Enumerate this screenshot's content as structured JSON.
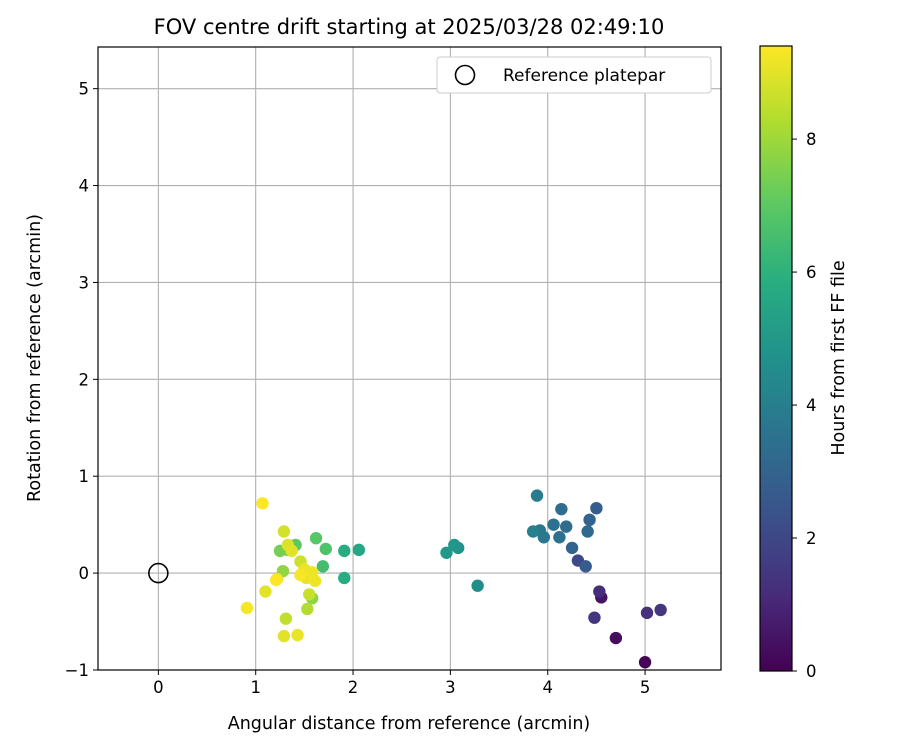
{
  "chart_data": {
    "type": "scatter",
    "title": "FOV centre drift starting at 2025/03/28 02:49:10",
    "xlabel": "Angular distance from reference (arcmin)",
    "ylabel": "Rotation from reference (arcmin)",
    "xlim": [
      -0.62,
      5.78
    ],
    "ylim": [
      -1.0,
      5.43
    ],
    "xticks": [
      "0",
      "1",
      "2",
      "3",
      "4",
      "5"
    ],
    "yticks": [
      "−1",
      "0",
      "1",
      "2",
      "3",
      "4",
      "5"
    ],
    "grid": true,
    "legend": {
      "placement": "top-right",
      "entries": [
        "Reference platepar"
      ]
    },
    "reference_point": {
      "x": 0.0,
      "y": 0.0
    },
    "colorbar": {
      "label": "Hours from first FF file",
      "colormap": "viridis",
      "range": [
        0,
        9.4
      ],
      "ticks": [
        "0",
        "2",
        "4",
        "6",
        "8"
      ]
    },
    "points": [
      {
        "x": 5.0,
        "y": -0.92,
        "c": 0.1
      },
      {
        "x": 4.7,
        "y": -0.67,
        "c": 0.3
      },
      {
        "x": 4.55,
        "y": -0.25,
        "c": 0.5
      },
      {
        "x": 4.53,
        "y": -0.19,
        "c": 1.2
      },
      {
        "x": 5.02,
        "y": -0.41,
        "c": 1.3
      },
      {
        "x": 5.16,
        "y": -0.38,
        "c": 1.5
      },
      {
        "x": 4.48,
        "y": -0.46,
        "c": 1.4
      },
      {
        "x": 4.31,
        "y": 0.13,
        "c": 2.1
      },
      {
        "x": 4.39,
        "y": 0.07,
        "c": 2.7
      },
      {
        "x": 4.25,
        "y": 0.26,
        "c": 3.0
      },
      {
        "x": 4.5,
        "y": 0.67,
        "c": 2.8
      },
      {
        "x": 4.43,
        "y": 0.55,
        "c": 3.0
      },
      {
        "x": 4.41,
        "y": 0.43,
        "c": 3.2
      },
      {
        "x": 4.19,
        "y": 0.48,
        "c": 3.3
      },
      {
        "x": 4.14,
        "y": 0.66,
        "c": 3.3
      },
      {
        "x": 4.12,
        "y": 0.37,
        "c": 3.5
      },
      {
        "x": 4.06,
        "y": 0.5,
        "c": 3.5
      },
      {
        "x": 3.96,
        "y": 0.37,
        "c": 3.7
      },
      {
        "x": 3.92,
        "y": 0.44,
        "c": 3.8
      },
      {
        "x": 3.89,
        "y": 0.8,
        "c": 3.9
      },
      {
        "x": 3.85,
        "y": 0.43,
        "c": 4.0
      },
      {
        "x": 3.28,
        "y": -0.13,
        "c": 4.6
      },
      {
        "x": 3.08,
        "y": 0.26,
        "c": 4.8
      },
      {
        "x": 3.04,
        "y": 0.29,
        "c": 4.9
      },
      {
        "x": 2.96,
        "y": 0.21,
        "c": 5.0
      },
      {
        "x": 2.06,
        "y": 0.24,
        "c": 5.6
      },
      {
        "x": 1.91,
        "y": 0.23,
        "c": 5.8
      },
      {
        "x": 1.91,
        "y": -0.05,
        "c": 5.8
      },
      {
        "x": 1.69,
        "y": 0.07,
        "c": 6.5
      },
      {
        "x": 1.72,
        "y": 0.25,
        "c": 6.7
      },
      {
        "x": 1.62,
        "y": 0.36,
        "c": 6.9
      },
      {
        "x": 1.41,
        "y": 0.29,
        "c": 7.0
      },
      {
        "x": 1.33,
        "y": 0.24,
        "c": 7.3
      },
      {
        "x": 1.25,
        "y": 0.23,
        "c": 7.4
      },
      {
        "x": 1.58,
        "y": -0.26,
        "c": 7.7
      },
      {
        "x": 1.28,
        "y": 0.02,
        "c": 7.8
      },
      {
        "x": 1.53,
        "y": -0.37,
        "c": 8.3
      },
      {
        "x": 1.31,
        "y": -0.47,
        "c": 8.5
      },
      {
        "x": 1.55,
        "y": -0.22,
        "c": 8.6
      },
      {
        "x": 1.46,
        "y": 0.12,
        "c": 8.7
      },
      {
        "x": 1.29,
        "y": 0.43,
        "c": 8.8
      },
      {
        "x": 1.33,
        "y": 0.29,
        "c": 8.9
      },
      {
        "x": 1.22,
        "y": -0.06,
        "c": 8.9
      },
      {
        "x": 1.29,
        "y": -0.65,
        "c": 9.0
      },
      {
        "x": 1.43,
        "y": -0.64,
        "c": 9.1
      },
      {
        "x": 1.1,
        "y": -0.19,
        "c": 9.0
      },
      {
        "x": 1.37,
        "y": 0.23,
        "c": 9.0
      },
      {
        "x": 1.5,
        "y": 0.04,
        "c": 9.1
      },
      {
        "x": 1.52,
        "y": -0.05,
        "c": 9.1
      },
      {
        "x": 1.58,
        "y": 0.01,
        "c": 9.2
      },
      {
        "x": 1.61,
        "y": -0.08,
        "c": 9.2
      },
      {
        "x": 1.46,
        "y": -0.02,
        "c": 9.3
      },
      {
        "x": 0.91,
        "y": -0.36,
        "c": 9.3
      },
      {
        "x": 1.07,
        "y": 0.72,
        "c": 9.4
      },
      {
        "x": 1.21,
        "y": -0.07,
        "c": 9.4
      }
    ]
  }
}
